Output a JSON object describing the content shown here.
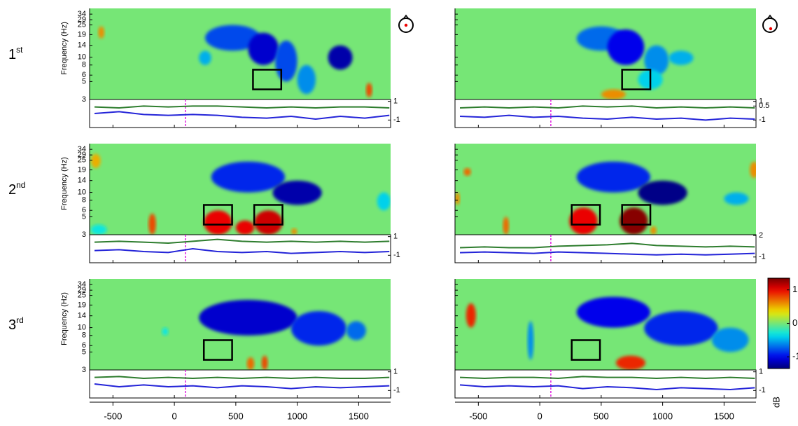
{
  "chart_data": {
    "type": "heatmap",
    "row_labels": [
      {
        "text": "1",
        "sup": "st"
      },
      {
        "text": "2",
        "sup": "nd"
      },
      {
        "text": "3",
        "sup": "rd"
      }
    ],
    "ylabel": "Frequency (Hz)",
    "xlim": [
      -690,
      1760
    ],
    "xticks": [
      -500,
      0,
      500,
      1000,
      1500
    ],
    "ylim": [
      3,
      40
    ],
    "yscale": "log",
    "yticks": [
      3,
      5,
      6,
      8,
      10,
      14,
      19,
      25,
      29,
      34
    ],
    "marker_line": 90,
    "trace_x": [
      -650,
      -450,
      -250,
      -50,
      150,
      350,
      550,
      750,
      950,
      1150,
      1350,
      1550,
      1750
    ],
    "colorbar": {
      "label": "dB",
      "clim": [
        -1.35,
        1.35
      ],
      "ticks": [
        1,
        0,
        -1
      ],
      "colormap": "jet"
    },
    "panels": [
      {
        "blobs": [
          {
            "t": [
              250,
              700
            ],
            "f": [
              12,
              25
            ],
            "value": -0.8
          },
          {
            "t": [
              600,
              850
            ],
            "f": [
              8,
              20
            ],
            "value": -1.1
          },
          {
            "t": [
              820,
              1000
            ],
            "f": [
              5,
              16
            ],
            "value": -0.8
          },
          {
            "t": [
              1000,
              1150
            ],
            "f": [
              3.5,
              8
            ],
            "value": -0.6
          },
          {
            "t": [
              1250,
              1450
            ],
            "f": [
              7,
              14
            ],
            "value": -1.2
          },
          {
            "t": [
              200,
              300
            ],
            "f": [
              8,
              12
            ],
            "value": -0.5
          },
          {
            "t": [
              -620,
              -570
            ],
            "f": [
              17,
              24
            ],
            "value": 0.6
          },
          {
            "t": [
              1560,
              1610
            ],
            "f": [
              3.2,
              4.8
            ],
            "value": 0.8
          }
        ],
        "boxes": [
          {
            "t": [
              640,
              870
            ],
            "f": [
              4,
              7
            ]
          }
        ],
        "trace_ylim": [
          -1.8,
          1.2
        ],
        "trace_yticks": [
          1,
          -1
        ],
        "series": [
          {
            "color": "#2e7d2e",
            "values": [
              0.4,
              0.3,
              0.5,
              0.4,
              0.5,
              0.5,
              0.4,
              0.3,
              0.4,
              0.3,
              0.4,
              0.4,
              0.3
            ]
          },
          {
            "color": "#2424d8",
            "values": [
              -0.3,
              -0.1,
              -0.4,
              -0.5,
              -0.4,
              -0.5,
              -0.7,
              -0.8,
              -0.6,
              -0.9,
              -0.6,
              -0.8,
              -0.5
            ]
          }
        ]
      },
      {
        "blobs": [
          {
            "t": [
              300,
              700
            ],
            "f": [
              12,
              24
            ],
            "value": -0.7
          },
          {
            "t": [
              550,
              850
            ],
            "f": [
              8,
              22
            ],
            "value": -1.0
          },
          {
            "t": [
              850,
              1050
            ],
            "f": [
              6,
              14
            ],
            "value": -0.6
          },
          {
            "t": [
              1050,
              1250
            ],
            "f": [
              8,
              12
            ],
            "value": -0.5
          },
          {
            "t": [
              800,
              1000
            ],
            "f": [
              4,
              7
            ],
            "value": -0.4
          },
          {
            "t": [
              500,
              700
            ],
            "f": [
              3,
              4
            ],
            "value": 0.6
          }
        ],
        "boxes": [
          {
            "t": [
              670,
              900
            ],
            "f": [
              4,
              7
            ]
          }
        ],
        "trace_ylim": [
          -1.8,
          1.2
        ],
        "trace_yticks": [
          1,
          0.5,
          -1
        ],
        "series": [
          {
            "color": "#2e7d2e",
            "values": [
              0.3,
              0.4,
              0.3,
              0.4,
              0.3,
              0.5,
              0.4,
              0.5,
              0.3,
              0.4,
              0.3,
              0.4,
              0.3
            ]
          },
          {
            "color": "#2424d8",
            "values": [
              -0.6,
              -0.7,
              -0.5,
              -0.7,
              -0.6,
              -0.8,
              -0.9,
              -0.7,
              -0.9,
              -0.8,
              -1.0,
              -0.8,
              -0.9
            ]
          }
        ]
      },
      {
        "blobs": [
          {
            "t": [
              300,
              900
            ],
            "f": [
              10,
              24
            ],
            "value": -0.9
          },
          {
            "t": [
              800,
              1200
            ],
            "f": [
              7,
              14
            ],
            "value": -1.2
          },
          {
            "t": [
              1650,
              1760
            ],
            "f": [
              6,
              10
            ],
            "value": -0.4
          },
          {
            "t": [
              -680,
              -550
            ],
            "f": [
              3,
              4
            ],
            "value": -0.3
          },
          {
            "t": [
              -680,
              -600
            ],
            "f": [
              20,
              30
            ],
            "value": 0.5
          },
          {
            "t": [
              -210,
              -150
            ],
            "f": [
              3,
              5.5
            ],
            "value": 0.8
          },
          {
            "t": [
              240,
              470
            ],
            "f": [
              3,
              6
            ],
            "value": 1.0
          },
          {
            "t": [
              500,
              650
            ],
            "f": [
              3,
              4.5
            ],
            "value": 1.0
          },
          {
            "t": [
              650,
              880
            ],
            "f": [
              3,
              6
            ],
            "value": 1.1
          },
          {
            "t": [
              950,
              1000
            ],
            "f": [
              3,
              3.6
            ],
            "value": 0.6
          }
        ],
        "boxes": [
          {
            "t": [
              240,
              470
            ],
            "f": [
              4,
              7
            ]
          },
          {
            "t": [
              650,
              880
            ],
            "f": [
              4,
              7
            ]
          }
        ],
        "trace_ylim": [
          -1.8,
          1.2
        ],
        "trace_yticks": [
          1,
          -1
        ],
        "series": [
          {
            "color": "#2e7d2e",
            "values": [
              0.4,
              0.5,
              0.4,
              0.3,
              0.5,
              0.7,
              0.5,
              0.4,
              0.5,
              0.4,
              0.5,
              0.4,
              0.5
            ]
          },
          {
            "color": "#2424d8",
            "values": [
              -0.5,
              -0.4,
              -0.6,
              -0.7,
              -0.3,
              -0.6,
              -0.7,
              -0.6,
              -0.8,
              -0.7,
              -0.6,
              -0.7,
              -0.6
            ]
          }
        ]
      },
      {
        "blobs": [
          {
            "t": [
              300,
              900
            ],
            "f": [
              10,
              24
            ],
            "value": -0.9
          },
          {
            "t": [
              800,
              1200
            ],
            "f": [
              7,
              14
            ],
            "value": -1.3
          },
          {
            "t": [
              1500,
              1700
            ],
            "f": [
              7,
              10
            ],
            "value": -0.5
          },
          {
            "t": [
              -690,
              -650
            ],
            "f": [
              7,
              10
            ],
            "value": 0.6
          },
          {
            "t": [
              -620,
              -560
            ],
            "f": [
              16,
              20
            ],
            "value": 0.7
          },
          {
            "t": [
              1710,
              1780
            ],
            "f": [
              15,
              24
            ],
            "value": 0.6
          },
          {
            "t": [
              -300,
              -250
            ],
            "f": [
              3,
              5
            ],
            "value": 0.7
          },
          {
            "t": [
              240,
              470
            ],
            "f": [
              3,
              6.5
            ],
            "value": 1.0
          },
          {
            "t": [
              650,
              880
            ],
            "f": [
              3,
              6.5
            ],
            "value": 1.3
          },
          {
            "t": [
              900,
              950
            ],
            "f": [
              3,
              3.8
            ],
            "value": 0.6
          }
        ],
        "boxes": [
          {
            "t": [
              260,
              490
            ],
            "f": [
              4,
              7
            ]
          },
          {
            "t": [
              670,
              900
            ],
            "f": [
              4,
              7
            ]
          }
        ],
        "trace_ylim": [
          -1.8,
          2.1
        ],
        "trace_yticks": [
          2,
          -1
        ],
        "series": [
          {
            "color": "#2e7d2e",
            "values": [
              0.3,
              0.4,
              0.3,
              0.3,
              0.5,
              0.6,
              0.7,
              0.9,
              0.6,
              0.5,
              0.4,
              0.5,
              0.4
            ]
          },
          {
            "color": "#2424d8",
            "values": [
              -0.4,
              -0.3,
              -0.4,
              -0.5,
              -0.3,
              -0.4,
              -0.5,
              -0.6,
              -0.7,
              -0.6,
              -0.7,
              -0.6,
              -0.5
            ]
          }
        ]
      },
      {
        "blobs": [
          {
            "t": [
              200,
              1000
            ],
            "f": [
              8,
              22
            ],
            "value": -1.1
          },
          {
            "t": [
              950,
              1400
            ],
            "f": [
              6,
              16
            ],
            "value": -0.9
          },
          {
            "t": [
              1400,
              1560
            ],
            "f": [
              7,
              12
            ],
            "value": -0.7
          },
          {
            "t": [
              -100,
              -50
            ],
            "f": [
              8,
              10
            ],
            "value": -0.3
          },
          {
            "t": [
              590,
              650
            ],
            "f": [
              3,
              4.3
            ],
            "value": 0.7
          },
          {
            "t": [
              710,
              760
            ],
            "f": [
              3,
              4.5
            ],
            "value": 0.8
          }
        ],
        "boxes": [
          {
            "t": [
              240,
              470
            ],
            "f": [
              4,
              7
            ]
          }
        ],
        "trace_ylim": [
          -1.8,
          1.2
        ],
        "trace_yticks": [
          1,
          -1
        ],
        "series": [
          {
            "color": "#2e7d2e",
            "values": [
              0.4,
              0.5,
              0.3,
              0.4,
              0.3,
              0.4,
              0.3,
              0.4,
              0.3,
              0.4,
              0.3,
              0.3,
              0.4
            ]
          },
          {
            "color": "#2424d8",
            "values": [
              -0.3,
              -0.6,
              -0.4,
              -0.6,
              -0.5,
              -0.7,
              -0.5,
              -0.6,
              -0.8,
              -0.6,
              -0.7,
              -0.6,
              -0.5
            ]
          }
        ]
      },
      {
        "blobs": [
          {
            "t": [
              300,
              900
            ],
            "f": [
              10,
              24
            ],
            "value": -1.0
          },
          {
            "t": [
              850,
              1450
            ],
            "f": [
              6,
              16
            ],
            "value": -0.9
          },
          {
            "t": [
              1400,
              1700
            ],
            "f": [
              5,
              10
            ],
            "value": -0.6
          },
          {
            "t": [
              -100,
              -50
            ],
            "f": [
              4,
              12
            ],
            "value": -0.6
          },
          {
            "t": [
              -600,
              -520
            ],
            "f": [
              10,
              20
            ],
            "value": 0.9
          },
          {
            "t": [
              620,
              860
            ],
            "f": [
              3,
              4.5
            ],
            "value": 0.9
          }
        ],
        "boxes": [
          {
            "t": [
              260,
              490
            ],
            "f": [
              4,
              7
            ]
          }
        ],
        "trace_ylim": [
          -1.8,
          1.2
        ],
        "trace_yticks": [
          1,
          -1
        ],
        "series": [
          {
            "color": "#2e7d2e",
            "values": [
              0.4,
              0.3,
              0.4,
              0.4,
              0.3,
              0.5,
              0.4,
              0.4,
              0.3,
              0.4,
              0.3,
              0.4,
              0.3
            ]
          },
          {
            "color": "#2424d8",
            "values": [
              -0.4,
              -0.6,
              -0.5,
              -0.6,
              -0.5,
              -0.8,
              -0.6,
              -0.7,
              -0.9,
              -0.7,
              -0.8,
              -0.9,
              -0.7
            ]
          }
        ]
      }
    ]
  }
}
